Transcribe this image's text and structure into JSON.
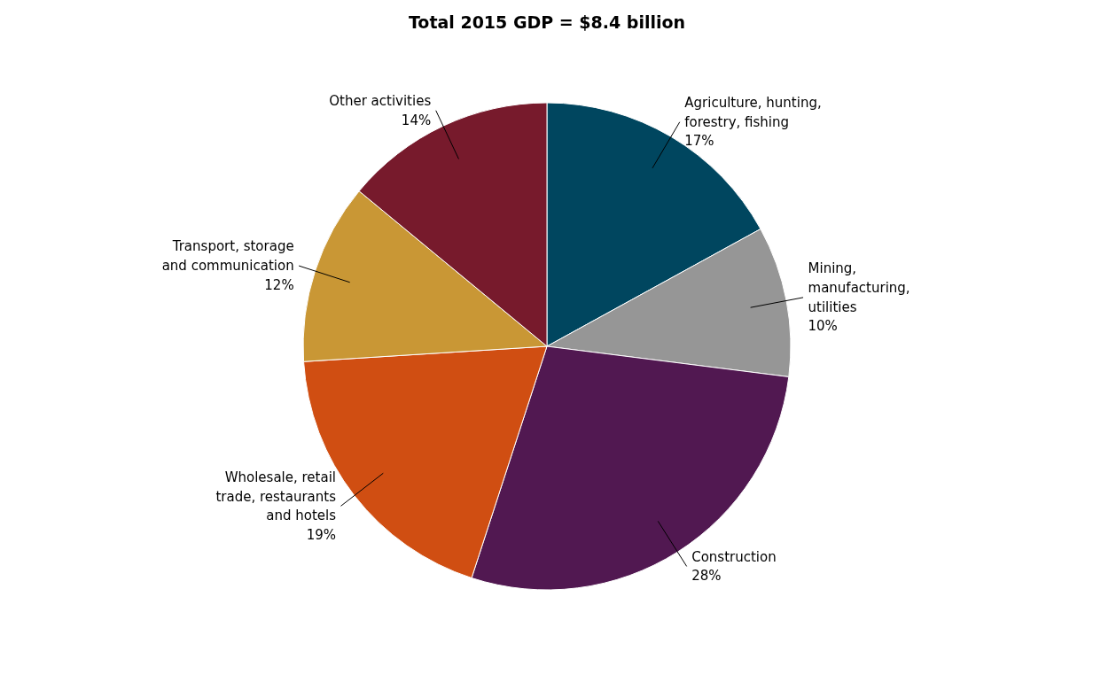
{
  "chart_data": {
    "type": "pie",
    "title": "Total 2015 GDP = $8.4 billion",
    "categories": [
      "Agriculture, hunting, forestry, fishing",
      "Mining, manufacturing, utilities",
      "Construction",
      "Wholesale, retail trade, restaurants and hotels",
      "Transport, storage and communication",
      "Other activities"
    ],
    "values": [
      17,
      10,
      28,
      19,
      12,
      14
    ],
    "value_labels": [
      "17%",
      "10%",
      "28%",
      "19%",
      "12%",
      "14%"
    ],
    "colors": [
      "#00465f",
      "#969696",
      "#511851",
      "#d04e12",
      "#c99735",
      "#771a2c"
    ]
  }
}
